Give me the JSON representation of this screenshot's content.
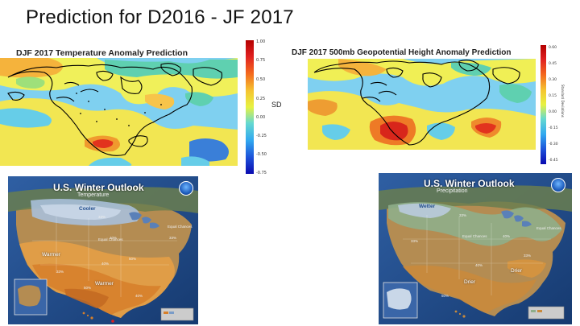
{
  "slide": {
    "title": "Prediction for D2016 - JF 2017"
  },
  "temp_map": {
    "title": "DJF 2017 Temperature Anomaly Prediction",
    "colorbar_ticks": [
      "1.00",
      "0.75",
      "0.50",
      "0.25",
      "0.00",
      "-0.25",
      "-0.50",
      "-0.75"
    ],
    "unit": "SD"
  },
  "height_map": {
    "title": "DJF 2017 500mb Geopotential Height Anomaly Prediction",
    "colorbar_ticks": [
      "0.60",
      "0.45",
      "0.30",
      "0.15",
      "0.00",
      "-0.15",
      "-0.30",
      "-0.45"
    ],
    "unit_vertical": "Standard Deviations"
  },
  "temp_outlook": {
    "title": "U.S. Winter Outlook",
    "subtitle": "Temperature",
    "regions": {
      "cooler": "Cooler",
      "warmer_west": "Warmer",
      "warmer_south": "Warmer",
      "equal_chances_center": "Equal Chances",
      "equal_chances_east": "Equal Chances"
    },
    "percents": [
      "33%",
      "40%",
      "50%",
      "33%",
      "40%",
      "33%",
      "50%",
      "40%"
    ]
  },
  "precip_outlook": {
    "title": "U.S. Winter Outlook",
    "subtitle": "Precipitation",
    "regions": {
      "wetter": "Wetter",
      "drier_south": "Drier",
      "drier_se": "Drier",
      "equal_chances_center": "Equal Chances",
      "equal_chances_east": "Equal Chances"
    },
    "percents": [
      "33%",
      "40%",
      "33%",
      "40%",
      "33%",
      "50%"
    ]
  },
  "colors": {
    "ocean": "#24508f",
    "land_tan": "#b8935a",
    "warm_orange": "#e8a045",
    "cool_blue": "#9bb4d4",
    "wet_green": "#8fae8a",
    "drier_brown": "#c98a3c"
  }
}
